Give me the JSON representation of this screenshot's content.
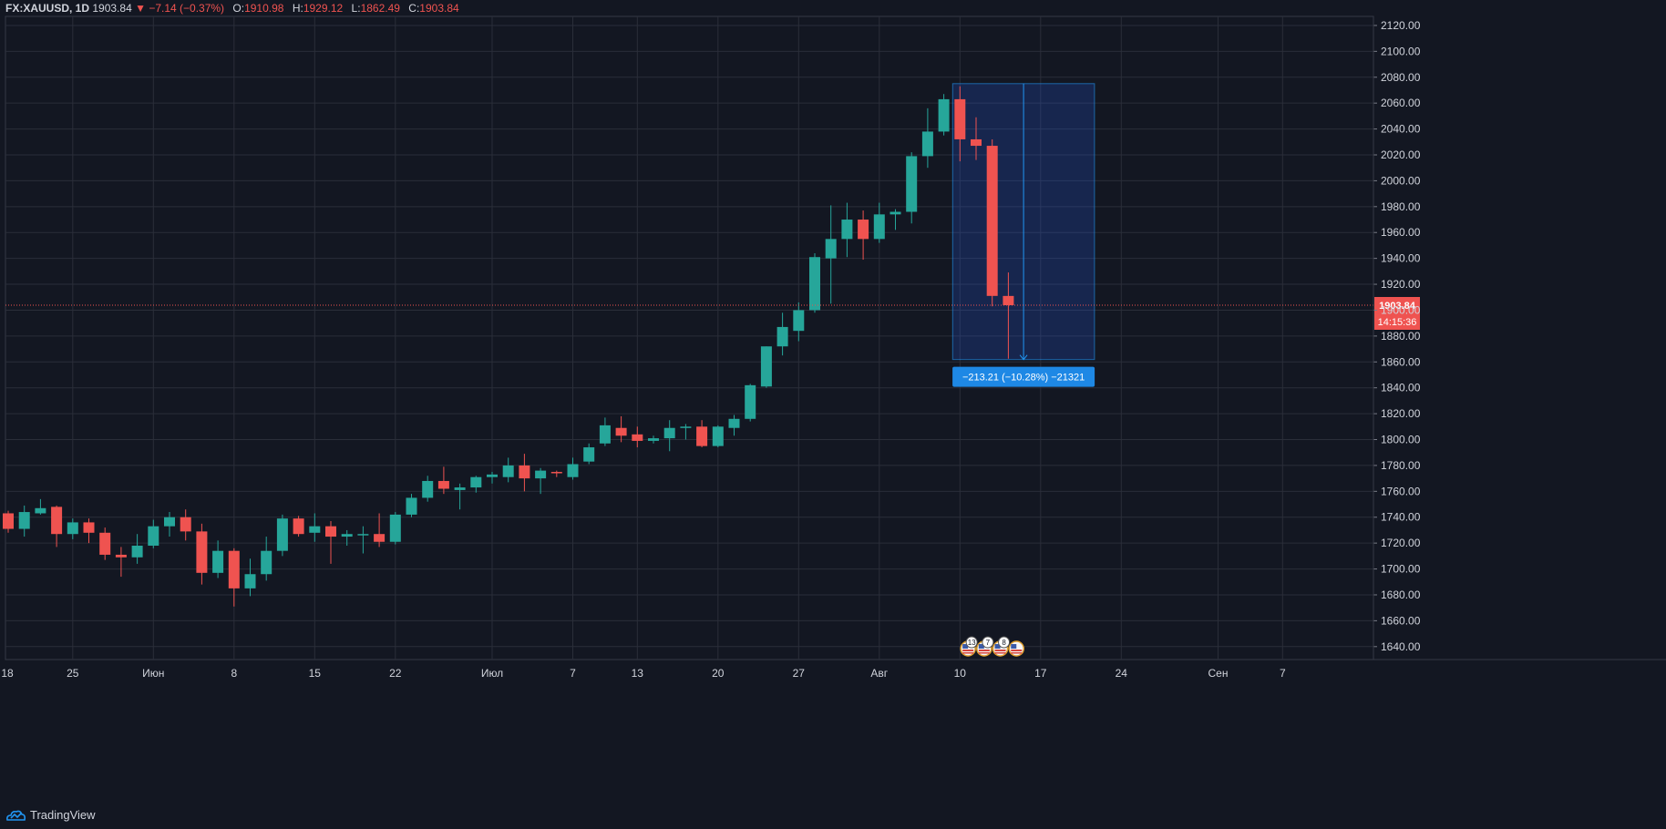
{
  "header": {
    "symbol": "FX:XAUUSD, 1D",
    "last": "1903.84",
    "change_arrow": "▼",
    "change": "−7.14 (−0.37%)",
    "o_label": "O:",
    "o": "1910.98",
    "h_label": "H:",
    "h": "1929.12",
    "l_label": "L:",
    "l": "1862.49",
    "c_label": "C:",
    "c": "1903.84"
  },
  "brand": {
    "name": "TradingView",
    "icon": "tradingview-cloud-icon"
  },
  "colors": {
    "background": "#131722",
    "grid": "#2a2e39",
    "up": "#26a69a",
    "down": "#ef5350",
    "text": "#d1d4dc",
    "measure_fill": "#2962ff",
    "measure_stroke": "#2196f3",
    "label_bg": "#1e88e5"
  },
  "chart_data": {
    "type": "candlestick",
    "ylim": [
      1630,
      2127
    ],
    "y_ticks": [
      1640,
      1660,
      1680,
      1700,
      1720,
      1740,
      1760,
      1780,
      1800,
      1820,
      1840,
      1860,
      1880,
      1900,
      1920,
      1940,
      1960,
      1980,
      2000,
      2020,
      2040,
      2060,
      2080,
      2100,
      2120
    ],
    "x_ticks": [
      {
        "label": "18",
        "index": -1
      },
      {
        "label": "25",
        "index": 4
      },
      {
        "label": "Июн",
        "index": 9
      },
      {
        "label": "8",
        "index": 14
      },
      {
        "label": "15",
        "index": 19
      },
      {
        "label": "22",
        "index": 24
      },
      {
        "label": "Июл",
        "index": 30
      },
      {
        "label": "7",
        "index": 35
      },
      {
        "label": "13",
        "index": 39
      },
      {
        "label": "20",
        "index": 44
      },
      {
        "label": "27",
        "index": 49
      },
      {
        "label": "Авг",
        "index": 54
      },
      {
        "label": "10",
        "index": 59
      },
      {
        "label": "17",
        "index": 64
      },
      {
        "label": "24",
        "index": 69
      },
      {
        "label": "Сен",
        "index": 75
      },
      {
        "label": "7",
        "index": 79
      }
    ],
    "candles": [
      {
        "o": 1743,
        "h": 1745,
        "l": 1728,
        "c": 1731
      },
      {
        "o": 1731,
        "h": 1749,
        "l": 1725,
        "c": 1744
      },
      {
        "o": 1743,
        "h": 1754,
        "l": 1742,
        "c": 1747
      },
      {
        "o": 1748,
        "h": 1749,
        "l": 1717,
        "c": 1727
      },
      {
        "o": 1727,
        "h": 1739,
        "l": 1723,
        "c": 1736
      },
      {
        "o": 1736,
        "h": 1739,
        "l": 1720,
        "c": 1728
      },
      {
        "o": 1728,
        "h": 1732,
        "l": 1707,
        "c": 1711
      },
      {
        "o": 1711,
        "h": 1717,
        "l": 1694,
        "c": 1709
      },
      {
        "o": 1709,
        "h": 1727,
        "l": 1704,
        "c": 1718
      },
      {
        "o": 1718,
        "h": 1738,
        "l": 1716,
        "c": 1733
      },
      {
        "o": 1733,
        "h": 1744,
        "l": 1725,
        "c": 1740
      },
      {
        "o": 1740,
        "h": 1746,
        "l": 1722,
        "c": 1729
      },
      {
        "o": 1729,
        "h": 1735,
        "l": 1688,
        "c": 1697
      },
      {
        "o": 1697,
        "h": 1722,
        "l": 1693,
        "c": 1714
      },
      {
        "o": 1714,
        "h": 1716,
        "l": 1671,
        "c": 1685
      },
      {
        "o": 1685,
        "h": 1708,
        "l": 1679,
        "c": 1696
      },
      {
        "o": 1696,
        "h": 1725,
        "l": 1691,
        "c": 1714
      },
      {
        "o": 1714,
        "h": 1742,
        "l": 1710,
        "c": 1739
      },
      {
        "o": 1739,
        "h": 1741,
        "l": 1725,
        "c": 1727
      },
      {
        "o": 1728,
        "h": 1743,
        "l": 1721,
        "c": 1733
      },
      {
        "o": 1733,
        "h": 1737,
        "l": 1704,
        "c": 1725
      },
      {
        "o": 1725,
        "h": 1730,
        "l": 1718,
        "c": 1727
      },
      {
        "o": 1727,
        "h": 1733,
        "l": 1712,
        "c": 1727
      },
      {
        "o": 1727,
        "h": 1743,
        "l": 1717,
        "c": 1721
      },
      {
        "o": 1721,
        "h": 1744,
        "l": 1719,
        "c": 1742
      },
      {
        "o": 1742,
        "h": 1758,
        "l": 1740,
        "c": 1755
      },
      {
        "o": 1755,
        "h": 1772,
        "l": 1752,
        "c": 1768
      },
      {
        "o": 1768,
        "h": 1779,
        "l": 1758,
        "c": 1762
      },
      {
        "o": 1761,
        "h": 1766,
        "l": 1746,
        "c": 1763
      },
      {
        "o": 1763,
        "h": 1772,
        "l": 1759,
        "c": 1771
      },
      {
        "o": 1771,
        "h": 1775,
        "l": 1766,
        "c": 1773
      },
      {
        "o": 1771,
        "h": 1786,
        "l": 1767,
        "c": 1780
      },
      {
        "o": 1780,
        "h": 1789,
        "l": 1760,
        "c": 1770
      },
      {
        "o": 1770,
        "h": 1778,
        "l": 1758,
        "c": 1776
      },
      {
        "o": 1775,
        "h": 1776,
        "l": 1771,
        "c": 1774
      },
      {
        "o": 1771,
        "h": 1786,
        "l": 1769,
        "c": 1781
      },
      {
        "o": 1783,
        "h": 1797,
        "l": 1781,
        "c": 1794
      },
      {
        "o": 1797,
        "h": 1817,
        "l": 1795,
        "c": 1811
      },
      {
        "o": 1809,
        "h": 1818,
        "l": 1798,
        "c": 1803
      },
      {
        "o": 1804,
        "h": 1810,
        "l": 1794,
        "c": 1799
      },
      {
        "o": 1799,
        "h": 1803,
        "l": 1797,
        "c": 1801
      },
      {
        "o": 1801,
        "h": 1815,
        "l": 1791,
        "c": 1809
      },
      {
        "o": 1809,
        "h": 1812,
        "l": 1800,
        "c": 1810
      },
      {
        "o": 1810,
        "h": 1815,
        "l": 1794,
        "c": 1795
      },
      {
        "o": 1795,
        "h": 1811,
        "l": 1794,
        "c": 1810
      },
      {
        "o": 1809,
        "h": 1819,
        "l": 1803,
        "c": 1816
      },
      {
        "o": 1816,
        "h": 1843,
        "l": 1814,
        "c": 1842
      },
      {
        "o": 1841,
        "h": 1872,
        "l": 1840,
        "c": 1872
      },
      {
        "o": 1872,
        "h": 1898,
        "l": 1865,
        "c": 1887
      },
      {
        "o": 1884,
        "h": 1906,
        "l": 1876,
        "c": 1900
      },
      {
        "o": 1900,
        "h": 1944,
        "l": 1898,
        "c": 1941
      },
      {
        "o": 1940,
        "h": 1981,
        "l": 1905,
        "c": 1955
      },
      {
        "o": 1955,
        "h": 1983,
        "l": 1941,
        "c": 1970
      },
      {
        "o": 1970,
        "h": 1977,
        "l": 1939,
        "c": 1955
      },
      {
        "o": 1955,
        "h": 1983,
        "l": 1952,
        "c": 1974
      },
      {
        "o": 1974,
        "h": 1978,
        "l": 1962,
        "c": 1976
      },
      {
        "o": 1976,
        "h": 2022,
        "l": 1967,
        "c": 2019
      },
      {
        "o": 2019,
        "h": 2056,
        "l": 2010,
        "c": 2038
      },
      {
        "o": 2038,
        "h": 2067,
        "l": 2035,
        "c": 2063
      },
      {
        "o": 2063,
        "h": 2073,
        "l": 2015,
        "c": 2032
      },
      {
        "o": 2032,
        "h": 2049,
        "l": 2016,
        "c": 2027
      },
      {
        "o": 2027,
        "h": 2032,
        "l": 1903,
        "c": 1911
      },
      {
        "o": 1910.98,
        "h": 1929.12,
        "l": 1862.49,
        "c": 1903.84
      }
    ],
    "current_price": {
      "value": 1903.84,
      "label": "1903.84",
      "timer": "14:15:36"
    },
    "measure": {
      "start_index": 59,
      "end_index": 67,
      "from_price": 2075.05,
      "to_price": 1861.84,
      "label": "−213.21 (−10.28%) −21321"
    },
    "events": [
      {
        "index": 59.5,
        "badge": "13"
      },
      {
        "index": 60.5,
        "badge": "7"
      },
      {
        "index": 61.5,
        "badge": "8"
      },
      {
        "index": 62.5,
        "badge": ""
      }
    ]
  }
}
